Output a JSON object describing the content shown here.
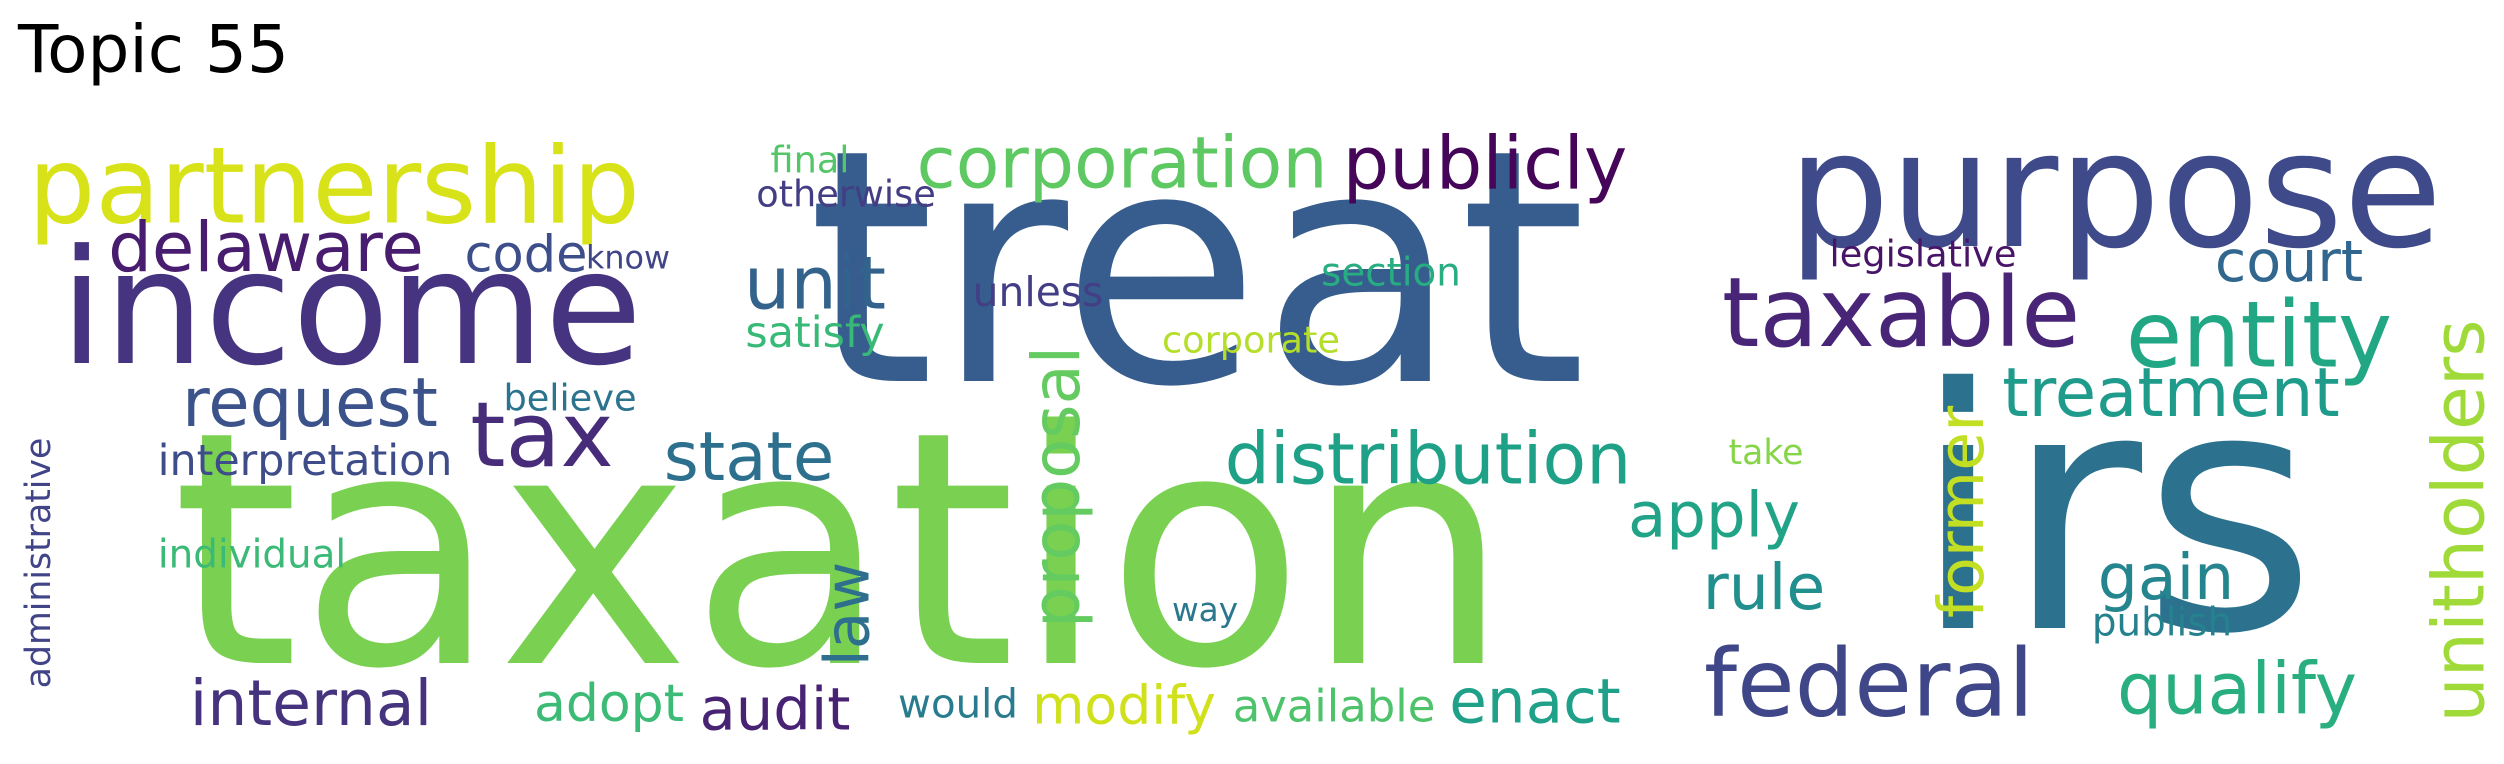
{
  "title": "Topic 55",
  "words": [
    {
      "text": "treat",
      "color": "#365d8d",
      "vertical": false
    },
    {
      "text": "taxation",
      "color": "#7ad151",
      "vertical": false
    },
    {
      "text": "irs",
      "color": "#2c728e",
      "vertical": false
    },
    {
      "text": "income",
      "color": "#463480",
      "vertical": false
    },
    {
      "text": "purpose",
      "color": "#3e4a89",
      "vertical": false
    },
    {
      "text": "partnership",
      "color": "#d8e219",
      "vertical": false
    },
    {
      "text": "federal",
      "color": "#3f4788",
      "vertical": false
    },
    {
      "text": "taxable",
      "color": "#482576",
      "vertical": false
    },
    {
      "text": "entity",
      "color": "#22a785",
      "vertical": false
    },
    {
      "text": "corporation",
      "color": "#5ec962",
      "vertical": false
    },
    {
      "text": "publicly",
      "color": "#450559",
      "vertical": false
    },
    {
      "text": "distribution",
      "color": "#1fa187",
      "vertical": false
    },
    {
      "text": "tax",
      "color": "#472c7a",
      "vertical": false
    },
    {
      "text": "treatment",
      "color": "#1e9b8a",
      "vertical": false
    },
    {
      "text": "unitholders",
      "color": "#a0da39",
      "vertical": true
    },
    {
      "text": "delaware",
      "color": "#481c6e",
      "vertical": false
    },
    {
      "text": "request",
      "color": "#3b528b",
      "vertical": false
    },
    {
      "text": "unit",
      "color": "#33638d",
      "vertical": false
    },
    {
      "text": "internal",
      "color": "#46337e",
      "vertical": false
    },
    {
      "text": "state",
      "color": "#2d708e",
      "vertical": false
    },
    {
      "text": "qualify",
      "color": "#29af7f",
      "vertical": false
    },
    {
      "text": "apply",
      "color": "#20a386",
      "vertical": false
    },
    {
      "text": "enact",
      "color": "#1fa088",
      "vertical": false
    },
    {
      "text": "proposal",
      "color": "#63cb5f",
      "vertical": true
    },
    {
      "text": "gain",
      "color": "#25858e",
      "vertical": false
    },
    {
      "text": "rule",
      "color": "#218f8d",
      "vertical": false
    },
    {
      "text": "court",
      "color": "#31668e",
      "vertical": false
    },
    {
      "text": "former",
      "color": "#c2df23",
      "vertical": true
    },
    {
      "text": "audit",
      "color": "#482374",
      "vertical": false
    },
    {
      "text": "modify",
      "color": "#d0e11c",
      "vertical": false
    },
    {
      "text": "law",
      "color": "#2e6f8e",
      "vertical": true
    },
    {
      "text": "adopt",
      "color": "#3bbb75",
      "vertical": false
    },
    {
      "text": "code",
      "color": "#3d4e8a",
      "vertical": false
    },
    {
      "text": "interpretation",
      "color": "#3e4c8a",
      "vertical": false
    },
    {
      "text": "satisfy",
      "color": "#38b977",
      "vertical": false
    },
    {
      "text": "unless",
      "color": "#433e85",
      "vertical": false
    },
    {
      "text": "available",
      "color": "#4ec36b",
      "vertical": false
    },
    {
      "text": "would",
      "color": "#287c8e",
      "vertical": false
    },
    {
      "text": "final",
      "color": "#54c568",
      "vertical": false
    },
    {
      "text": "otherwise",
      "color": "#433d84",
      "vertical": false
    },
    {
      "text": "know",
      "color": "#404588",
      "vertical": false
    },
    {
      "text": "section",
      "color": "#27ad81",
      "vertical": false
    },
    {
      "text": "legislative",
      "color": "#481467",
      "vertical": false
    },
    {
      "text": "believe",
      "color": "#2c738e",
      "vertical": false
    },
    {
      "text": "corporate",
      "color": "#b5de2b",
      "vertical": false
    },
    {
      "text": "take",
      "color": "#86d549",
      "vertical": false
    },
    {
      "text": "individual",
      "color": "#3aba76",
      "vertical": false
    },
    {
      "text": "way",
      "color": "#2a778e",
      "vertical": false
    },
    {
      "text": "publish",
      "color": "#26818e",
      "vertical": false
    },
    {
      "text": "administrative",
      "color": "#414487",
      "vertical": true
    }
  ]
}
